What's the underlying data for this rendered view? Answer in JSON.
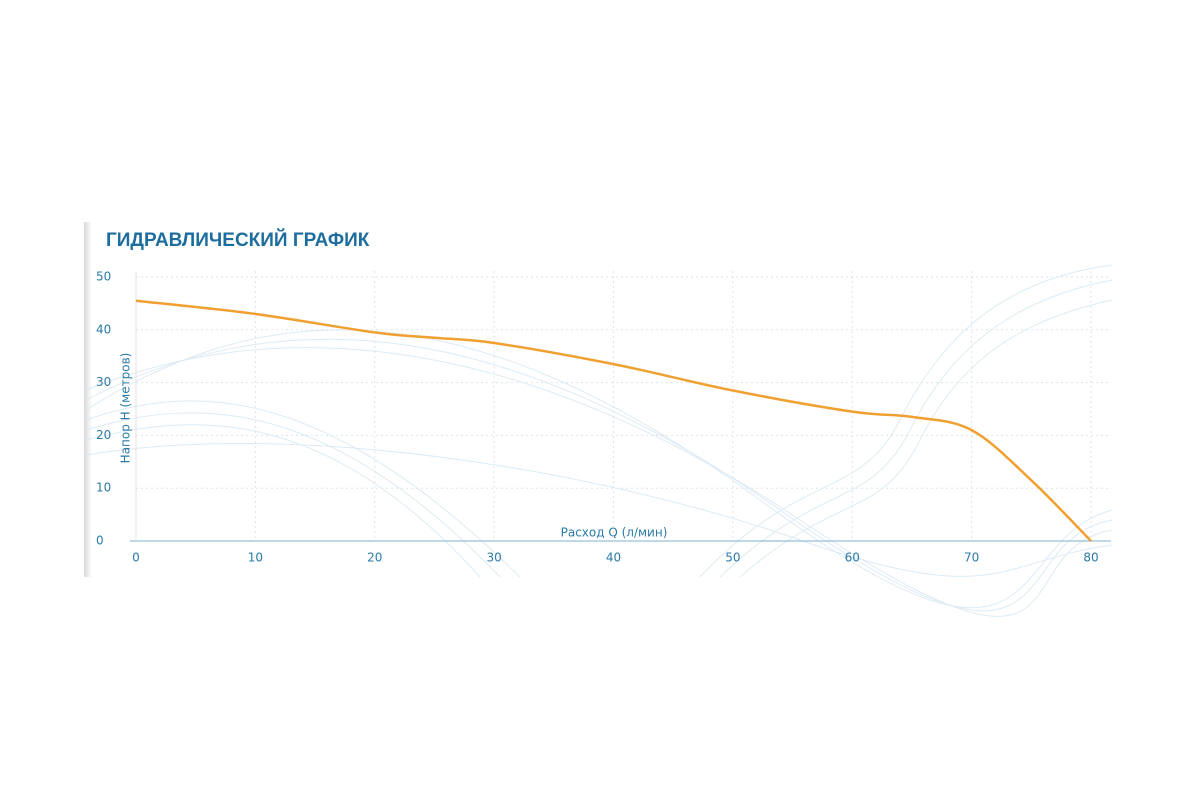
{
  "chart_data": {
    "type": "line",
    "title": "ГИДРАВЛИЧЕСКИЙ ГРАФИК",
    "x_label": "Расход Q (л/мин)",
    "y_label": "Напор Н (метров)",
    "x": [
      0,
      10,
      20,
      25,
      30,
      40,
      50,
      60,
      65,
      70,
      75,
      80
    ],
    "series": [
      {
        "color": "#f0a030",
        "values": [
          45.5,
          43,
          39.5,
          38.5,
          37.5,
          33.5,
          28.5,
          24.5,
          23.5,
          21,
          11.5,
          0
        ]
      }
    ],
    "xlim": [
      0,
      80
    ],
    "xticks": [
      0,
      10,
      20,
      30,
      40,
      50,
      60,
      70,
      80
    ],
    "ylim": [
      0,
      50
    ],
    "yticks": [
      0,
      10,
      20,
      30,
      40,
      50
    ],
    "grid": true
  }
}
